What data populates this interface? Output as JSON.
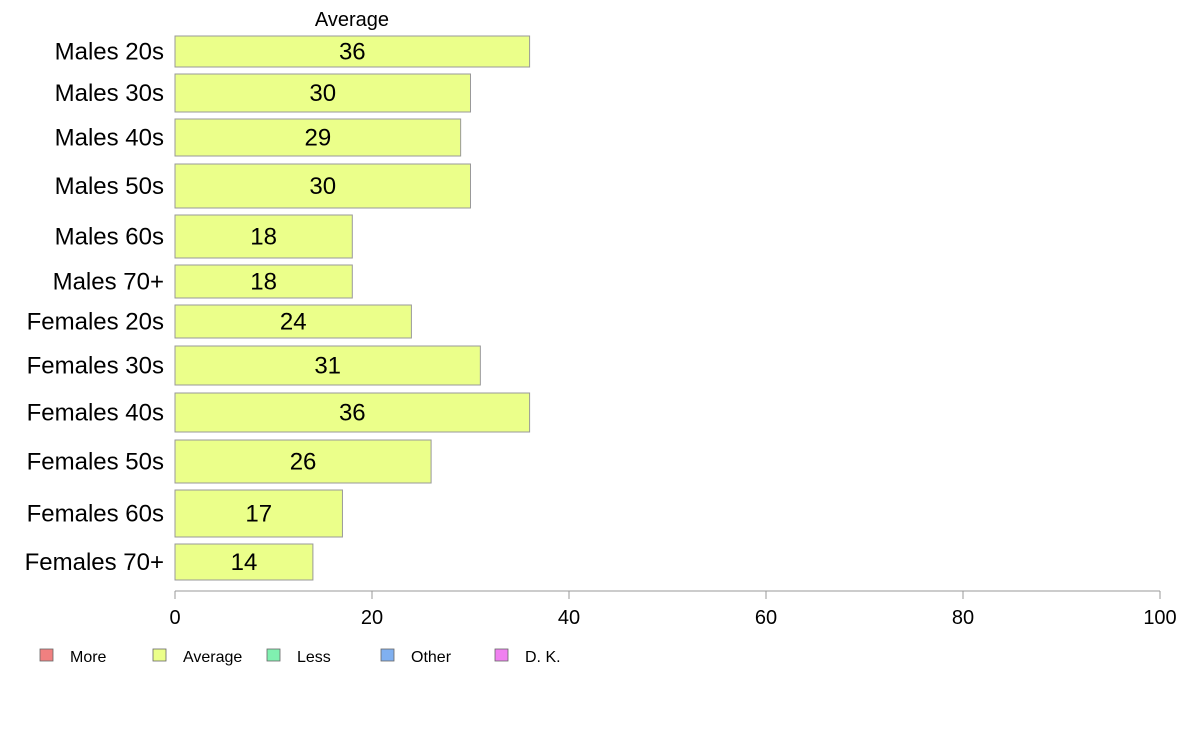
{
  "chart_data": {
    "type": "bar",
    "orientation": "horizontal",
    "series_heading": "Average",
    "categories": [
      "Males 20s",
      "Males 30s",
      "Males 40s",
      "Males 50s",
      "Males 60s",
      "Males 70+",
      "Females 20s",
      "Females 30s",
      "Females 40s",
      "Females 50s",
      "Females 60s",
      "Females 70+"
    ],
    "series": [
      {
        "name": "Average",
        "color": "#ebff8a",
        "values": [
          36,
          30,
          29,
          30,
          18,
          18,
          24,
          31,
          36,
          26,
          17,
          14
        ]
      }
    ],
    "xlim": [
      0,
      100
    ],
    "xticks": [
      0,
      20,
      40,
      60,
      80,
      100
    ],
    "grid": false,
    "legend": {
      "placement": "bottom-left",
      "items": [
        {
          "label": "More",
          "color": "#f08080"
        },
        {
          "label": "Average",
          "color": "#ebff8a"
        },
        {
          "label": "Less",
          "color": "#80f0b0"
        },
        {
          "label": "Other",
          "color": "#80b0f0"
        },
        {
          "label": "D. K.",
          "color": "#f080f0"
        }
      ]
    },
    "bar_border_color": "#999999",
    "axis_color": "#999999"
  }
}
